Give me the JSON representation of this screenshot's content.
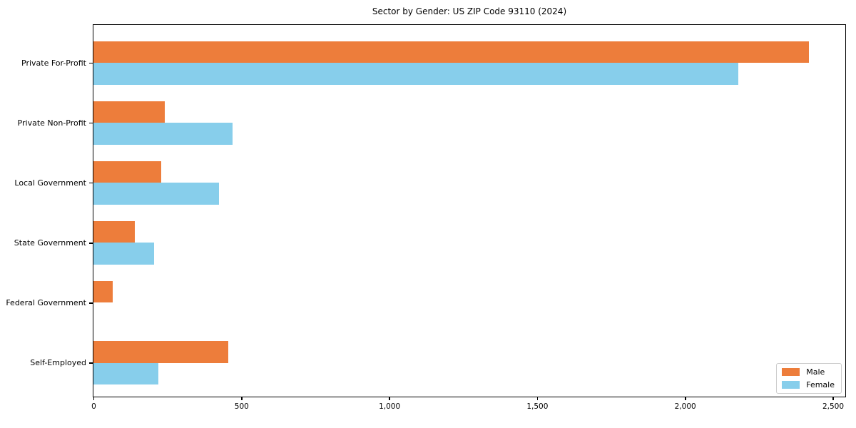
{
  "title": "Sector by Gender: US ZIP Code 93110 (2024)",
  "chart_data": {
    "type": "bar",
    "orientation": "horizontal",
    "title": "Sector by Gender: US ZIP Code 93110 (2024)",
    "categories": [
      "Private For-Profit",
      "Private Non-Profit",
      "Local Government",
      "State Government",
      "Federal Government",
      "Self-Employed"
    ],
    "series": [
      {
        "name": "Male",
        "color": "#ED7D3B",
        "values": [
          2420,
          240,
          230,
          140,
          65,
          455
        ]
      },
      {
        "name": "Female",
        "color": "#87CEEB",
        "values": [
          2180,
          470,
          425,
          205,
          0,
          220
        ]
      }
    ],
    "xlabel": "",
    "ylabel": "",
    "xlim": [
      0,
      2547
    ],
    "xticks": [
      0,
      500,
      1000,
      1500,
      2000,
      2500
    ],
    "xtick_labels": [
      "0",
      "500",
      "1,000",
      "1,500",
      "2,000",
      "2,500"
    ],
    "grid": false,
    "legend_position": "lower right",
    "legend_items": [
      {
        "label": "Male",
        "color": "#ED7D3B"
      },
      {
        "label": "Female",
        "color": "#87CEEB"
      }
    ]
  }
}
